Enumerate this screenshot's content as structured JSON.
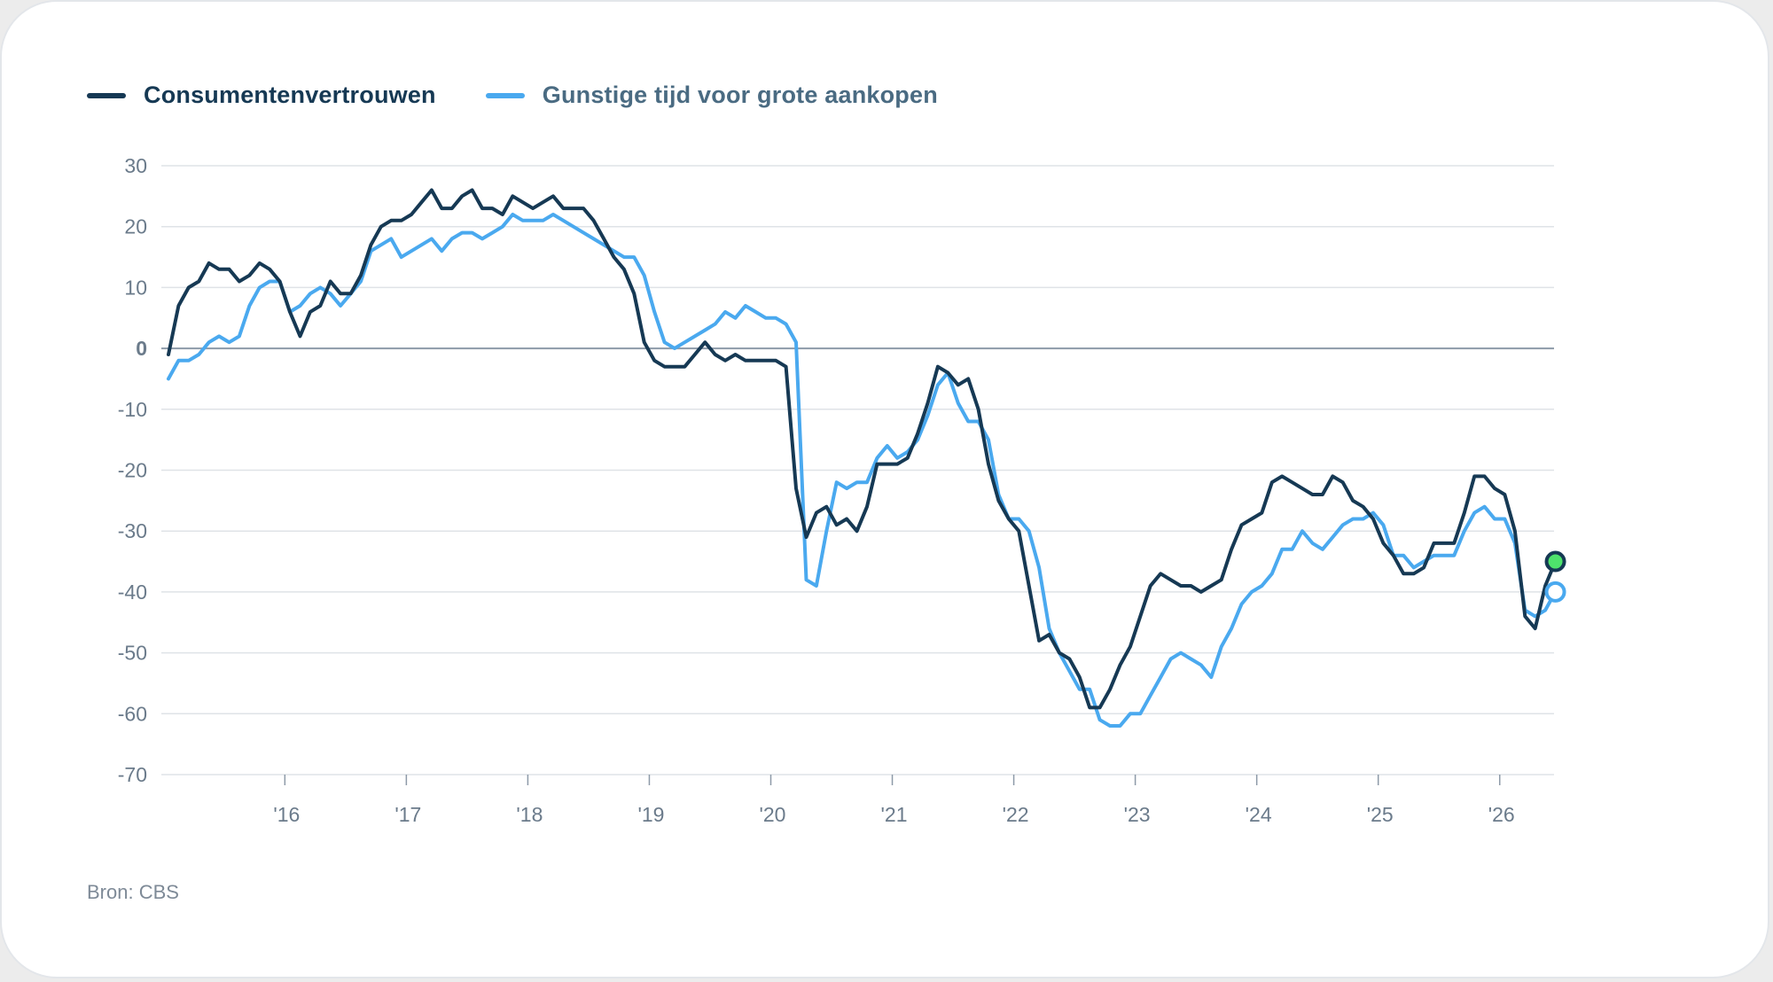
{
  "chart_data": {
    "type": "line",
    "title": "",
    "xlabel": "",
    "ylabel": "",
    "ylim": [
      -70,
      30
    ],
    "yticks": [
      "30",
      "20",
      "10",
      "0",
      "-10",
      "-20",
      "-30",
      "-40",
      "-50",
      "-60",
      "-70"
    ],
    "xticks": [
      "'16",
      "'17",
      "'18",
      "'19",
      "'20",
      "'21",
      "'22",
      "'23",
      "'24",
      "'25",
      "'26"
    ],
    "legend_position": "top-left",
    "grid": true,
    "series": [
      {
        "name": "Consumentenvertrouwen",
        "color": "#163954",
        "end_marker_color": "#4ee36c",
        "points": [
          [
            "2015-01",
            -1
          ],
          [
            "2015-02",
            7
          ],
          [
            "2015-03",
            10
          ],
          [
            "2015-04",
            11
          ],
          [
            "2015-05",
            14
          ],
          [
            "2015-06",
            13
          ],
          [
            "2015-07",
            13
          ],
          [
            "2015-08",
            11
          ],
          [
            "2015-09",
            12
          ],
          [
            "2015-10",
            14
          ],
          [
            "2015-11",
            13
          ],
          [
            "2015-12",
            11
          ],
          [
            "2016-01",
            6
          ],
          [
            "2016-02",
            2
          ],
          [
            "2016-03",
            6
          ],
          [
            "2016-04",
            7
          ],
          [
            "2016-05",
            11
          ],
          [
            "2016-06",
            9
          ],
          [
            "2016-07",
            9
          ],
          [
            "2016-08",
            12
          ],
          [
            "2016-09",
            17
          ],
          [
            "2016-10",
            20
          ],
          [
            "2016-11",
            21
          ],
          [
            "2016-12",
            21
          ],
          [
            "2017-01",
            22
          ],
          [
            "2017-02",
            24
          ],
          [
            "2017-03",
            26
          ],
          [
            "2017-04",
            23
          ],
          [
            "2017-05",
            23
          ],
          [
            "2017-06",
            25
          ],
          [
            "2017-07",
            26
          ],
          [
            "2017-08",
            23
          ],
          [
            "2017-09",
            23
          ],
          [
            "2017-10",
            22
          ],
          [
            "2017-11",
            25
          ],
          [
            "2017-12",
            24
          ],
          [
            "2018-01",
            23
          ],
          [
            "2018-02",
            24
          ],
          [
            "2018-03",
            25
          ],
          [
            "2018-04",
            23
          ],
          [
            "2018-05",
            23
          ],
          [
            "2018-06",
            23
          ],
          [
            "2018-07",
            21
          ],
          [
            "2018-08",
            18
          ],
          [
            "2018-09",
            15
          ],
          [
            "2018-10",
            13
          ],
          [
            "2018-11",
            9
          ],
          [
            "2018-12",
            1
          ],
          [
            "2019-01",
            -2
          ],
          [
            "2019-02",
            -3
          ],
          [
            "2019-03",
            -3
          ],
          [
            "2019-04",
            -3
          ],
          [
            "2019-05",
            -1
          ],
          [
            "2019-06",
            1
          ],
          [
            "2019-07",
            -1
          ],
          [
            "2019-08",
            -2
          ],
          [
            "2019-09",
            -1
          ],
          [
            "2019-10",
            -2
          ],
          [
            "2019-11",
            -2
          ],
          [
            "2019-12",
            -2
          ],
          [
            "2020-01",
            -2
          ],
          [
            "2020-02",
            -3
          ],
          [
            "2020-03",
            -23
          ],
          [
            "2020-04",
            -31
          ],
          [
            "2020-05",
            -27
          ],
          [
            "2020-06",
            -26
          ],
          [
            "2020-07",
            -29
          ],
          [
            "2020-08",
            -28
          ],
          [
            "2020-09",
            -30
          ],
          [
            "2020-10",
            -26
          ],
          [
            "2020-11",
            -19
          ],
          [
            "2020-12",
            -19
          ],
          [
            "2021-01",
            -19
          ],
          [
            "2021-02",
            -18
          ],
          [
            "2021-03",
            -14
          ],
          [
            "2021-04",
            -9
          ],
          [
            "2021-05",
            -3
          ],
          [
            "2021-06",
            -4
          ],
          [
            "2021-07",
            -6
          ],
          [
            "2021-08",
            -5
          ],
          [
            "2021-09",
            -10
          ],
          [
            "2021-10",
            -19
          ],
          [
            "2021-11",
            -25
          ],
          [
            "2021-12",
            -28
          ],
          [
            "2022-01",
            -30
          ],
          [
            "2022-02",
            -39
          ],
          [
            "2022-03",
            -48
          ],
          [
            "2022-04",
            -47
          ],
          [
            "2022-05",
            -50
          ],
          [
            "2022-06",
            -51
          ],
          [
            "2022-07",
            -54
          ],
          [
            "2022-08",
            -59
          ],
          [
            "2022-09",
            -59
          ],
          [
            "2022-10",
            -56
          ],
          [
            "2022-11",
            -52
          ],
          [
            "2022-12",
            -49
          ],
          [
            "2023-01",
            -44
          ],
          [
            "2023-02",
            -39
          ],
          [
            "2023-03",
            -37
          ],
          [
            "2023-04",
            -38
          ],
          [
            "2023-05",
            -39
          ],
          [
            "2023-06",
            -39
          ],
          [
            "2023-07",
            -40
          ],
          [
            "2023-08",
            -39
          ],
          [
            "2023-09",
            -38
          ],
          [
            "2023-10",
            -33
          ],
          [
            "2023-11",
            -29
          ],
          [
            "2023-12",
            -28
          ],
          [
            "2024-01",
            -27
          ],
          [
            "2024-02",
            -22
          ],
          [
            "2024-03",
            -21
          ],
          [
            "2024-04",
            -22
          ],
          [
            "2024-05",
            -23
          ],
          [
            "2024-06",
            -24
          ],
          [
            "2024-07",
            -24
          ],
          [
            "2024-08",
            -21
          ],
          [
            "2024-09",
            -22
          ],
          [
            "2024-10",
            -25
          ],
          [
            "2024-11",
            -26
          ],
          [
            "2024-12",
            -28
          ],
          [
            "2025-01",
            -32
          ],
          [
            "2025-02",
            -34
          ],
          [
            "2025-03",
            -37
          ],
          [
            "2025-04",
            -37
          ],
          [
            "2025-05",
            -36
          ],
          [
            "2025-06",
            -32
          ],
          [
            "2025-07",
            -32
          ],
          [
            "2025-08",
            -32
          ],
          [
            "2025-09",
            -27
          ],
          [
            "2025-10",
            -21
          ],
          [
            "2025-11",
            -21
          ],
          [
            "2025-12",
            -23
          ],
          [
            "2026-01",
            -24
          ],
          [
            "2026-02",
            -30
          ],
          [
            "2026-03",
            -44
          ],
          [
            "2026-04",
            -46
          ],
          [
            "2026-05",
            -39
          ],
          [
            "2026-06",
            -35
          ]
        ]
      },
      {
        "name": "Gunstige tijd voor grote aankopen",
        "color": "#4aa9ef",
        "end_marker_color": "#ffffff",
        "points": [
          [
            "2015-01",
            -5
          ],
          [
            "2015-02",
            -2
          ],
          [
            "2015-03",
            -2
          ],
          [
            "2015-04",
            -1
          ],
          [
            "2015-05",
            1
          ],
          [
            "2015-06",
            2
          ],
          [
            "2015-07",
            1
          ],
          [
            "2015-08",
            2
          ],
          [
            "2015-09",
            7
          ],
          [
            "2015-10",
            10
          ],
          [
            "2015-11",
            11
          ],
          [
            "2015-12",
            11
          ],
          [
            "2016-01",
            6
          ],
          [
            "2016-02",
            7
          ],
          [
            "2016-03",
            9
          ],
          [
            "2016-04",
            10
          ],
          [
            "2016-05",
            9
          ],
          [
            "2016-06",
            7
          ],
          [
            "2016-07",
            9
          ],
          [
            "2016-08",
            11
          ],
          [
            "2016-09",
            16
          ],
          [
            "2016-10",
            17
          ],
          [
            "2016-11",
            18
          ],
          [
            "2016-12",
            15
          ],
          [
            "2017-01",
            16
          ],
          [
            "2017-02",
            17
          ],
          [
            "2017-03",
            18
          ],
          [
            "2017-04",
            16
          ],
          [
            "2017-05",
            18
          ],
          [
            "2017-06",
            19
          ],
          [
            "2017-07",
            19
          ],
          [
            "2017-08",
            18
          ],
          [
            "2017-09",
            19
          ],
          [
            "2017-10",
            20
          ],
          [
            "2017-11",
            22
          ],
          [
            "2017-12",
            21
          ],
          [
            "2018-01",
            21
          ],
          [
            "2018-02",
            21
          ],
          [
            "2018-03",
            22
          ],
          [
            "2018-04",
            21
          ],
          [
            "2018-05",
            20
          ],
          [
            "2018-06",
            19
          ],
          [
            "2018-07",
            18
          ],
          [
            "2018-08",
            17
          ],
          [
            "2018-09",
            16
          ],
          [
            "2018-10",
            15
          ],
          [
            "2018-11",
            15
          ],
          [
            "2018-12",
            12
          ],
          [
            "2019-01",
            6
          ],
          [
            "2019-02",
            1
          ],
          [
            "2019-03",
            0
          ],
          [
            "2019-04",
            1
          ],
          [
            "2019-05",
            2
          ],
          [
            "2019-06",
            3
          ],
          [
            "2019-07",
            4
          ],
          [
            "2019-08",
            6
          ],
          [
            "2019-09",
            5
          ],
          [
            "2019-10",
            7
          ],
          [
            "2019-11",
            6
          ],
          [
            "2019-12",
            5
          ],
          [
            "2020-01",
            5
          ],
          [
            "2020-02",
            4
          ],
          [
            "2020-03",
            1
          ],
          [
            "2020-04",
            -38
          ],
          [
            "2020-05",
            -39
          ],
          [
            "2020-06",
            -30
          ],
          [
            "2020-07",
            -22
          ],
          [
            "2020-08",
            -23
          ],
          [
            "2020-09",
            -22
          ],
          [
            "2020-10",
            -22
          ],
          [
            "2020-11",
            -18
          ],
          [
            "2020-12",
            -16
          ],
          [
            "2021-01",
            -18
          ],
          [
            "2021-02",
            -17
          ],
          [
            "2021-03",
            -15
          ],
          [
            "2021-04",
            -11
          ],
          [
            "2021-05",
            -6
          ],
          [
            "2021-06",
            -4
          ],
          [
            "2021-07",
            -9
          ],
          [
            "2021-08",
            -12
          ],
          [
            "2021-09",
            -12
          ],
          [
            "2021-10",
            -15
          ],
          [
            "2021-11",
            -24
          ],
          [
            "2021-12",
            -28
          ],
          [
            "2022-01",
            -28
          ],
          [
            "2022-02",
            -30
          ],
          [
            "2022-03",
            -36
          ],
          [
            "2022-04",
            -46
          ],
          [
            "2022-05",
            -50
          ],
          [
            "2022-06",
            -53
          ],
          [
            "2022-07",
            -56
          ],
          [
            "2022-08",
            -56
          ],
          [
            "2022-09",
            -61
          ],
          [
            "2022-10",
            -62
          ],
          [
            "2022-11",
            -62
          ],
          [
            "2022-12",
            -60
          ],
          [
            "2023-01",
            -60
          ],
          [
            "2023-02",
            -57
          ],
          [
            "2023-03",
            -54
          ],
          [
            "2023-04",
            -51
          ],
          [
            "2023-05",
            -50
          ],
          [
            "2023-06",
            -51
          ],
          [
            "2023-07",
            -52
          ],
          [
            "2023-08",
            -54
          ],
          [
            "2023-09",
            -49
          ],
          [
            "2023-10",
            -46
          ],
          [
            "2023-11",
            -42
          ],
          [
            "2023-12",
            -40
          ],
          [
            "2024-01",
            -39
          ],
          [
            "2024-02",
            -37
          ],
          [
            "2024-03",
            -33
          ],
          [
            "2024-04",
            -33
          ],
          [
            "2024-05",
            -30
          ],
          [
            "2024-06",
            -32
          ],
          [
            "2024-07",
            -33
          ],
          [
            "2024-08",
            -31
          ],
          [
            "2024-09",
            -29
          ],
          [
            "2024-10",
            -28
          ],
          [
            "2024-11",
            -28
          ],
          [
            "2024-12",
            -27
          ],
          [
            "2025-01",
            -29
          ],
          [
            "2025-02",
            -34
          ],
          [
            "2025-03",
            -34
          ],
          [
            "2025-04",
            -36
          ],
          [
            "2025-05",
            -35
          ],
          [
            "2025-06",
            -34
          ],
          [
            "2025-07",
            -34
          ],
          [
            "2025-08",
            -34
          ],
          [
            "2025-09",
            -30
          ],
          [
            "2025-10",
            -27
          ],
          [
            "2025-11",
            -26
          ],
          [
            "2025-12",
            -28
          ],
          [
            "2026-01",
            -28
          ],
          [
            "2026-02",
            -32
          ],
          [
            "2026-03",
            -43
          ],
          [
            "2026-04",
            -44
          ],
          [
            "2026-05",
            -43
          ],
          [
            "2026-06",
            -40
          ]
        ]
      }
    ]
  },
  "source": "Bron: CBS",
  "colors": {
    "grid": "#dfe3e7",
    "zero_line": "#8d9aa8",
    "tick_text": "#6b7b8b",
    "legend_dark": "#163954",
    "legend_light": "#4a6b82"
  }
}
